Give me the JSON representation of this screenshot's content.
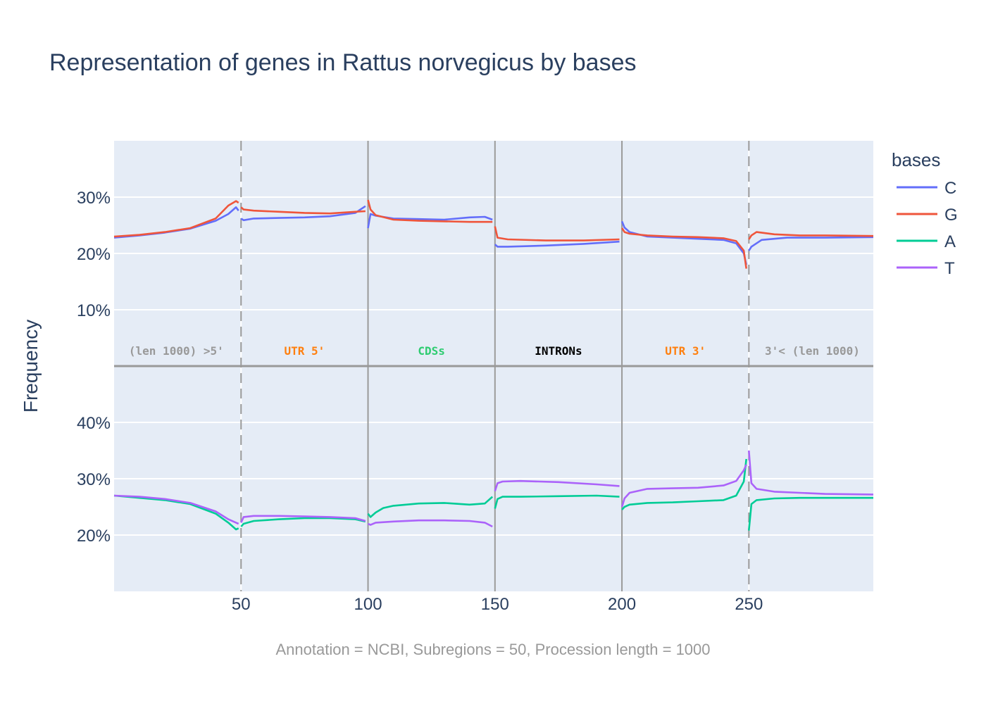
{
  "title": "Representation of genes in Rattus norvegicus by bases",
  "footer": "Annotation = NCBI, Subregions = 50, Procession length = 1000",
  "chart_data": {
    "type": "line",
    "ylabel": "Frequency",
    "legend": {
      "title": "bases",
      "position": "right"
    },
    "xlim": [
      0,
      299
    ],
    "x_ticks": [
      50,
      100,
      150,
      200,
      250
    ],
    "x_tick_labels": [
      "50",
      "100",
      "150",
      "200",
      "250"
    ],
    "grid": true,
    "regions": [
      {
        "label": "(len 1000) >5'",
        "color": "#999999",
        "x_center": 24.5
      },
      {
        "label": "UTR 5'",
        "color": "#ff7f0e",
        "x_center": 75
      },
      {
        "label": "CDSs",
        "color": "#2ecc71",
        "x_center": 125
      },
      {
        "label": "INTRONs",
        "color": "#000000",
        "x_center": 175
      },
      {
        "label": "UTR 3'",
        "color": "#ff7f0e",
        "x_center": 225
      },
      {
        "label": "3'< (len 1000)",
        "color": "#999999",
        "x_center": 275
      }
    ],
    "boundaries": [
      {
        "x": 50,
        "style": "dashed"
      },
      {
        "x": 100,
        "style": "solid"
      },
      {
        "x": 150,
        "style": "solid"
      },
      {
        "x": 200,
        "style": "solid"
      },
      {
        "x": 250,
        "style": "dashed"
      }
    ],
    "panels": [
      {
        "name": "top",
        "ylim": [
          0,
          0.4
        ],
        "y_ticks": [
          0.1,
          0.2,
          0.3
        ],
        "y_tick_labels": [
          "10%",
          "20%",
          "30%"
        ],
        "series": [
          {
            "name": "C",
            "color": "#636efa",
            "segments": [
              {
                "x": [
                  0,
                  10,
                  20,
                  30,
                  40,
                  45,
                  48,
                  49
                ],
                "y": [
                  0.228,
                  0.232,
                  0.237,
                  0.244,
                  0.258,
                  0.27,
                  0.282,
                  0.276
                ]
              },
              {
                "x": [
                  50,
                  51,
                  55,
                  65,
                  75,
                  85,
                  95,
                  99
                ],
                "y": [
                  0.262,
                  0.259,
                  0.262,
                  0.263,
                  0.264,
                  0.266,
                  0.272,
                  0.284
                ]
              },
              {
                "x": [
                  100,
                  101,
                  103,
                  110,
                  120,
                  130,
                  140,
                  146,
                  149
                ],
                "y": [
                  0.245,
                  0.27,
                  0.267,
                  0.262,
                  0.261,
                  0.26,
                  0.264,
                  0.265,
                  0.26
                ]
              },
              {
                "x": [
                  150,
                  151,
                  155,
                  170,
                  185,
                  199
                ],
                "y": [
                  0.216,
                  0.212,
                  0.212,
                  0.214,
                  0.217,
                  0.221
                ]
              },
              {
                "x": [
                  200,
                  201,
                  203,
                  210,
                  220,
                  230,
                  240,
                  245,
                  248,
                  249
                ],
                "y": [
                  0.257,
                  0.246,
                  0.238,
                  0.23,
                  0.228,
                  0.226,
                  0.224,
                  0.218,
                  0.2,
                  0.18
                ]
              },
              {
                "x": [
                  250,
                  251,
                  255,
                  265,
                  280,
                  299
                ],
                "y": [
                  0.205,
                  0.212,
                  0.224,
                  0.228,
                  0.228,
                  0.229
                ]
              }
            ]
          },
          {
            "name": "G",
            "color": "#ef553b",
            "segments": [
              {
                "x": [
                  0,
                  10,
                  20,
                  30,
                  40,
                  45,
                  48,
                  49
                ],
                "y": [
                  0.23,
                  0.233,
                  0.238,
                  0.245,
                  0.262,
                  0.285,
                  0.293,
                  0.29
                ]
              },
              {
                "x": [
                  50,
                  51,
                  55,
                  65,
                  75,
                  85,
                  95,
                  99
                ],
                "y": [
                  0.282,
                  0.278,
                  0.276,
                  0.274,
                  0.272,
                  0.271,
                  0.274,
                  0.275
                ]
              },
              {
                "x": [
                  100,
                  101,
                  103,
                  110,
                  120,
                  130,
                  140,
                  149
                ],
                "y": [
                  0.295,
                  0.278,
                  0.268,
                  0.26,
                  0.258,
                  0.257,
                  0.256,
                  0.256
                ]
              },
              {
                "x": [
                  150,
                  151,
                  155,
                  170,
                  185,
                  199
                ],
                "y": [
                  0.248,
                  0.228,
                  0.225,
                  0.223,
                  0.223,
                  0.225
                ]
              },
              {
                "x": [
                  200,
                  201,
                  203,
                  210,
                  220,
                  230,
                  240,
                  245,
                  248,
                  249
                ],
                "y": [
                  0.245,
                  0.238,
                  0.235,
                  0.232,
                  0.23,
                  0.229,
                  0.227,
                  0.222,
                  0.205,
                  0.173
                ]
              },
              {
                "x": [
                  250,
                  251,
                  253,
                  260,
                  270,
                  280,
                  299
                ],
                "y": [
                  0.225,
                  0.232,
                  0.238,
                  0.234,
                  0.232,
                  0.232,
                  0.231
                ]
              }
            ]
          }
        ]
      },
      {
        "name": "bottom",
        "ylim": [
          0.1,
          0.5
        ],
        "y_ticks": [
          0.2,
          0.3,
          0.4
        ],
        "y_tick_labels": [
          "20%",
          "30%",
          "40%"
        ],
        "series": [
          {
            "name": "A",
            "color": "#00cc96",
            "segments": [
              {
                "x": [
                  0,
                  10,
                  20,
                  30,
                  40,
                  45,
                  48,
                  49
                ],
                "y": [
                  0.27,
                  0.266,
                  0.262,
                  0.255,
                  0.238,
                  0.222,
                  0.21,
                  0.212
                ]
              },
              {
                "x": [
                  50,
                  51,
                  55,
                  65,
                  75,
                  85,
                  95,
                  99
                ],
                "y": [
                  0.215,
                  0.22,
                  0.225,
                  0.228,
                  0.23,
                  0.23,
                  0.228,
                  0.224
                ]
              },
              {
                "x": [
                  100,
                  101,
                  103,
                  106,
                  110,
                  120,
                  130,
                  140,
                  146,
                  149
                ],
                "y": [
                  0.238,
                  0.232,
                  0.24,
                  0.248,
                  0.252,
                  0.256,
                  0.257,
                  0.254,
                  0.256,
                  0.268
                ]
              },
              {
                "x": [
                  150,
                  151,
                  153,
                  160,
                  175,
                  190,
                  199
                ],
                "y": [
                  0.247,
                  0.264,
                  0.268,
                  0.268,
                  0.269,
                  0.27,
                  0.268
                ]
              },
              {
                "x": [
                  200,
                  201,
                  203,
                  210,
                  220,
                  230,
                  240,
                  245,
                  248,
                  249
                ],
                "y": [
                  0.245,
                  0.25,
                  0.254,
                  0.257,
                  0.258,
                  0.26,
                  0.262,
                  0.27,
                  0.295,
                  0.335
                ]
              },
              {
                "x": [
                  250,
                  251,
                  253,
                  260,
                  270,
                  280,
                  299
                ],
                "y": [
                  0.208,
                  0.255,
                  0.262,
                  0.265,
                  0.266,
                  0.266,
                  0.266
                ]
              }
            ]
          },
          {
            "name": "T",
            "color": "#ab63fa",
            "segments": [
              {
                "x": [
                  0,
                  10,
                  20,
                  30,
                  40,
                  45,
                  48,
                  49
                ],
                "y": [
                  0.27,
                  0.268,
                  0.264,
                  0.257,
                  0.242,
                  0.228,
                  0.222,
                  0.22
                ]
              },
              {
                "x": [
                  50,
                  51,
                  55,
                  65,
                  75,
                  85,
                  95,
                  99
                ],
                "y": [
                  0.222,
                  0.232,
                  0.234,
                  0.234,
                  0.233,
                  0.232,
                  0.23,
                  0.225
                ]
              },
              {
                "x": [
                  100,
                  101,
                  103,
                  110,
                  120,
                  130,
                  140,
                  146,
                  149
                ],
                "y": [
                  0.22,
                  0.218,
                  0.222,
                  0.224,
                  0.226,
                  0.226,
                  0.225,
                  0.222,
                  0.215
                ]
              },
              {
                "x": [
                  150,
                  151,
                  153,
                  160,
                  175,
                  190,
                  199
                ],
                "y": [
                  0.278,
                  0.292,
                  0.295,
                  0.296,
                  0.294,
                  0.29,
                  0.287
                ]
              },
              {
                "x": [
                  200,
                  201,
                  203,
                  210,
                  220,
                  230,
                  240,
                  245,
                  248,
                  249
                ],
                "y": [
                  0.25,
                  0.265,
                  0.275,
                  0.282,
                  0.283,
                  0.284,
                  0.288,
                  0.296,
                  0.315,
                  0.325
                ]
              },
              {
                "x": [
                  250,
                  251,
                  253,
                  260,
                  270,
                  280,
                  299
                ],
                "y": [
                  0.35,
                  0.292,
                  0.282,
                  0.277,
                  0.275,
                  0.273,
                  0.272
                ]
              }
            ]
          }
        ]
      }
    ]
  }
}
